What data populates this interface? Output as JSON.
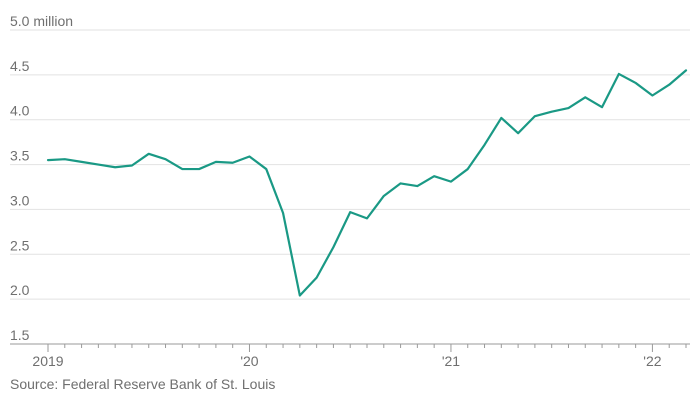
{
  "chart_data": {
    "type": "line",
    "title": "",
    "xlabel": "",
    "ylabel": "",
    "ylim": [
      1.5,
      5.0
    ],
    "y_ticks": [
      1.5,
      2.0,
      2.5,
      3.0,
      3.5,
      4.0,
      4.5,
      5.0
    ],
    "y_tick_labels": [
      "1.5",
      "2.0",
      "2.5",
      "3.0",
      "3.5",
      "4.0",
      "4.5",
      "5.0 million"
    ],
    "x_tick_labels": [
      "2019",
      "'20",
      "'21",
      "'22"
    ],
    "x_tick_dates": [
      "2019-01",
      "2020-01",
      "2021-01",
      "2022-01"
    ],
    "grid": true,
    "line_color": "#1a9985",
    "series": [
      {
        "x": [
          "2019-01",
          "2019-02",
          "2019-03",
          "2019-04",
          "2019-05",
          "2019-06",
          "2019-07",
          "2019-08",
          "2019-09",
          "2019-10",
          "2019-11",
          "2019-12",
          "2020-01",
          "2020-02",
          "2020-03",
          "2020-04",
          "2020-05",
          "2020-06",
          "2020-07",
          "2020-08",
          "2020-09",
          "2020-10",
          "2020-11",
          "2020-12",
          "2021-01",
          "2021-02",
          "2021-03",
          "2021-04",
          "2021-05",
          "2021-06",
          "2021-07",
          "2021-08",
          "2021-09",
          "2021-10",
          "2021-11",
          "2021-12",
          "2022-01",
          "2022-02",
          "2022-03"
        ],
        "values": [
          3.55,
          3.56,
          3.53,
          3.5,
          3.47,
          3.49,
          3.62,
          3.56,
          3.45,
          3.45,
          3.53,
          3.52,
          3.59,
          3.45,
          2.96,
          2.04,
          2.24,
          2.58,
          2.97,
          2.9,
          3.15,
          3.29,
          3.26,
          3.37,
          3.31,
          3.45,
          3.72,
          4.02,
          3.85,
          4.04,
          4.09,
          4.13,
          4.25,
          4.14,
          4.51,
          4.41,
          4.27,
          4.39,
          4.55
        ]
      }
    ]
  },
  "source": "Source: Federal Reserve Bank of St. Louis"
}
